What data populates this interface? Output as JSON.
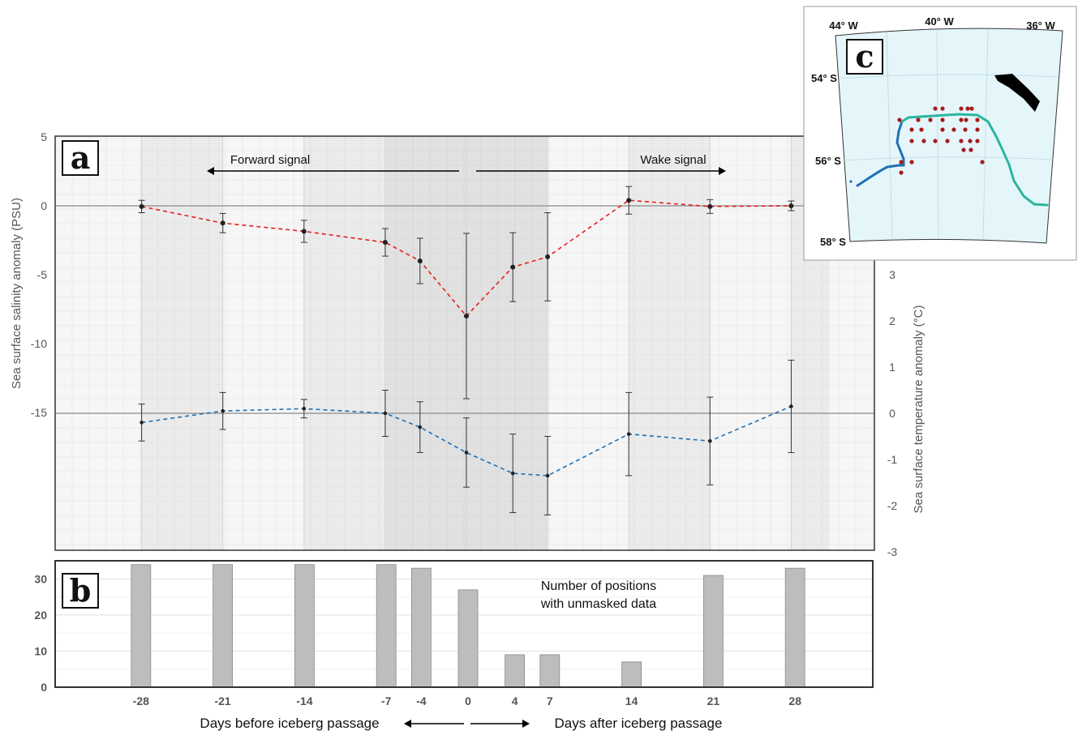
{
  "chart_data": [
    {
      "type": "line",
      "panel_label": "a",
      "x_label": "Days before iceberg passage ← → Days after iceberg passage",
      "x": [
        -28,
        -21,
        -14,
        -7,
        -4,
        0,
        4,
        7,
        14,
        21,
        28
      ],
      "x_tick_labels": [
        "-28",
        "-21",
        "-14",
        "-7",
        "-4",
        "0",
        "4",
        "7",
        "14",
        "21",
        "28"
      ],
      "ylabel_left": "Sea surface salinity anomaly (PSU)",
      "ylabel_right": "Sea surface temperature  anomaly (°C)",
      "left_ticks": [
        "5",
        "0",
        "-5",
        "-10",
        "-15"
      ],
      "right_ticks": [
        "3",
        "2",
        "1",
        "0",
        "-1",
        "-2",
        "-3"
      ],
      "annotations": {
        "forward": "Forward signal",
        "wake": "Wake signal"
      },
      "series": [
        {
          "axis": "left",
          "color": "#e3201b",
          "values": [
            -0.05,
            -1.25,
            -1.85,
            -2.65,
            -4.0,
            -8.0,
            -4.45,
            -3.7,
            0.4,
            -0.05,
            0.0
          ],
          "error": [
            0.45,
            0.7,
            0.8,
            1.0,
            1.65,
            6.0,
            2.5,
            3.2,
            1.0,
            0.5,
            0.35
          ]
        },
        {
          "axis": "right",
          "color": "#1f6fb2",
          "values": [
            -0.2,
            0.05,
            0.1,
            0.0,
            -0.3,
            -0.85,
            -1.3,
            -1.35,
            -0.45,
            -0.6,
            0.15
          ],
          "error": [
            0.4,
            0.4,
            0.2,
            0.5,
            0.55,
            0.75,
            0.85,
            0.85,
            0.9,
            0.95,
            1.0
          ]
        }
      ],
      "shading": "grey bands between x = -28 and 28, darker between -7 and 7"
    },
    {
      "type": "bar",
      "panel_label": "b",
      "annotation": [
        "Number of positions",
        "with unmasked data"
      ],
      "categories": [
        "-28",
        "-21",
        "-14",
        "-7",
        "-4",
        "0",
        "4",
        "7",
        "14",
        "21",
        "28"
      ],
      "values": [
        34,
        34,
        34,
        34,
        33,
        27,
        9,
        9,
        7,
        31,
        33
      ],
      "y_ticks": [
        "30",
        "20",
        "10",
        "0"
      ],
      "ylim": [
        0,
        34
      ],
      "color": "#bdbdbd",
      "x_captions": {
        "left": "Days before iceberg passage",
        "right": "Days after iceberg passage"
      }
    },
    {
      "type": "map",
      "panel_label": "c",
      "lon_labels": [
        "44° W",
        "40° W",
        "36° W"
      ],
      "lat_labels": [
        "54° S",
        "56° S",
        "58° S"
      ],
      "ocean_color": "#e5f6fb",
      "track_colors": [
        "#1f6fb2",
        "#2ab5a0"
      ],
      "point_color": "#a61c1c",
      "iceberg_color": "#000000"
    }
  ]
}
